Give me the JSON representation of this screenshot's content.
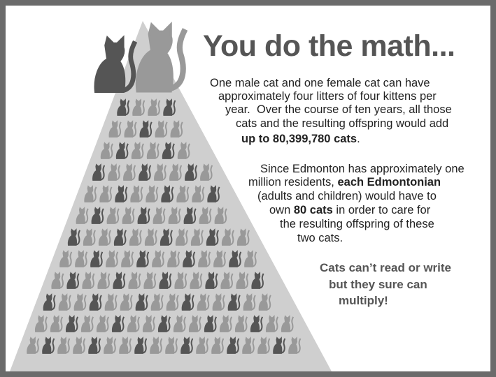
{
  "title": "You do the math...",
  "paragraph_1": [
    [
      {
        "text": "One male cat and one female cat can have"
      }
    ],
    [
      {
        "text": "approximately four litters of four kittens per"
      }
    ],
    [
      {
        "text": "year.  Over the course of ten years, all those"
      }
    ],
    [
      {
        "text": "cats and the resulting offspring would add"
      }
    ],
    [
      {
        "text": "up to 80,399,780 cats",
        "bold": true
      },
      {
        "text": "."
      }
    ]
  ],
  "paragraph_2": [
    [
      {
        "text": "Since Edmonton has approximately one"
      }
    ],
    [
      {
        "text": "million residents, "
      },
      {
        "text": "each Edmontonian",
        "bold": true
      }
    ],
    [
      {
        "text": "(adults and children) would have to"
      }
    ],
    [
      {
        "text": "own "
      },
      {
        "text": "80 cats",
        "bold": true
      },
      {
        "text": " in order to care for"
      }
    ],
    [
      {
        "text": "the resulting offspring of these"
      }
    ],
    [
      {
        "text": "two cats."
      }
    ]
  ],
  "closing": [
    "Cats can’t read or write",
    "but they sure can",
    "multiply!"
  ]
}
